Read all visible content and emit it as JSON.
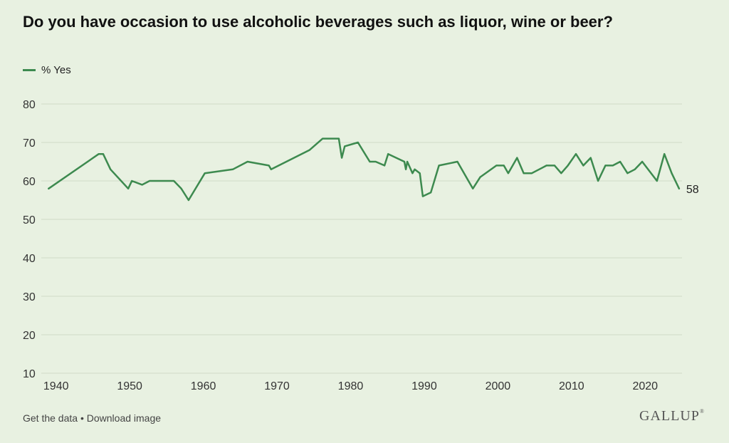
{
  "title": "Do you have occasion to use alcoholic beverages such as liquor, wine or beer?",
  "footer": {
    "get_data": "Get the data",
    "separator": "•",
    "download": "Download image"
  },
  "logo": "GALLUP",
  "logo_mark": "®",
  "colors": {
    "background": "#e8f1e1",
    "line": "#3d8a4f",
    "grid": "#cfdcc8",
    "text": "#222222"
  },
  "chart_data": {
    "type": "line",
    "legend_position": "top-left",
    "grid": true,
    "xlim": [
      1938,
      2025
    ],
    "ylim": [
      10,
      80
    ],
    "x_ticks": [
      1940,
      1950,
      1960,
      1970,
      1980,
      1990,
      2000,
      2010,
      2020
    ],
    "y_ticks": [
      10,
      20,
      30,
      40,
      50,
      60,
      70,
      80
    ],
    "last_value_label": "58",
    "series": [
      {
        "name": "% Yes",
        "points": [
          [
            1939,
            58
          ],
          [
            1945.8,
            67
          ],
          [
            1946.4,
            67
          ],
          [
            1947.4,
            63
          ],
          [
            1949.8,
            58
          ],
          [
            1950.3,
            60
          ],
          [
            1951.7,
            59
          ],
          [
            1952.7,
            60
          ],
          [
            1956,
            60
          ],
          [
            1957,
            58
          ],
          [
            1958,
            55
          ],
          [
            1960.2,
            62
          ],
          [
            1964,
            63
          ],
          [
            1966,
            65
          ],
          [
            1968.9,
            64
          ],
          [
            1969.2,
            63
          ],
          [
            1974.4,
            68
          ],
          [
            1976.2,
            71
          ],
          [
            1978.4,
            71
          ],
          [
            1978.8,
            66
          ],
          [
            1979.2,
            69
          ],
          [
            1981,
            70
          ],
          [
            1982.6,
            65
          ],
          [
            1983.4,
            65
          ],
          [
            1984.6,
            64
          ],
          [
            1985.1,
            67
          ],
          [
            1987.3,
            65
          ],
          [
            1987.5,
            63
          ],
          [
            1987.7,
            65
          ],
          [
            1988.4,
            62
          ],
          [
            1988.7,
            63
          ],
          [
            1989.4,
            62
          ],
          [
            1989.8,
            56
          ],
          [
            1990.9,
            57
          ],
          [
            1992,
            64
          ],
          [
            1994.5,
            65
          ],
          [
            1996.6,
            58
          ],
          [
            1997.6,
            61
          ],
          [
            1999.8,
            64
          ],
          [
            2000.8,
            64
          ],
          [
            2001.4,
            62
          ],
          [
            2002.6,
            66
          ],
          [
            2003.5,
            62
          ],
          [
            2004.6,
            62
          ],
          [
            2006.6,
            64
          ],
          [
            2007.7,
            64
          ],
          [
            2008.6,
            62
          ],
          [
            2009.5,
            64
          ],
          [
            2010.6,
            67
          ],
          [
            2011.6,
            64
          ],
          [
            2012.6,
            66
          ],
          [
            2013.6,
            60
          ],
          [
            2014.6,
            64
          ],
          [
            2015.6,
            64
          ],
          [
            2016.6,
            65
          ],
          [
            2017.6,
            62
          ],
          [
            2018.6,
            63
          ],
          [
            2019.6,
            65
          ],
          [
            2021.6,
            60
          ],
          [
            2022.6,
            67
          ],
          [
            2023.6,
            62
          ],
          [
            2024.6,
            58
          ]
        ]
      }
    ]
  }
}
